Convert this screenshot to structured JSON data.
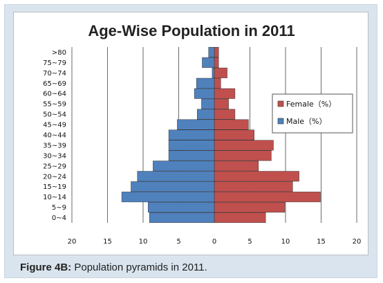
{
  "chart_data": {
    "type": "bar",
    "orientation": "horizontal",
    "title": "Age-Wise Population in 2011",
    "categories": [
      "0~4",
      "5~9",
      "10~14",
      "15~19",
      "20~24",
      "25~29",
      "30~34",
      "35~39",
      "40~44",
      "45~49",
      "50~54",
      "55~59",
      "60~64",
      "65~69",
      "70~74",
      "75~79",
      ">80"
    ],
    "series": [
      {
        "name": "Female (%)",
        "color": "#c0504d",
        "side": "right",
        "values": [
          7.2,
          9.9,
          14.9,
          11.0,
          11.9,
          6.2,
          8.0,
          8.3,
          5.6,
          4.8,
          2.9,
          2.0,
          2.9,
          0.9,
          1.8,
          0.6,
          0.6
        ]
      },
      {
        "name": "Male (%)",
        "color": "#4f81bd",
        "side": "left",
        "values": [
          9.1,
          9.3,
          13.0,
          11.7,
          10.8,
          8.6,
          6.4,
          6.4,
          6.4,
          5.2,
          2.4,
          1.8,
          2.8,
          2.5,
          0.3,
          1.7,
          0.8
        ]
      }
    ],
    "xlim": [
      -20,
      20
    ],
    "xticks": [
      "20",
      "15",
      "10",
      "5",
      "0",
      "5",
      "10",
      "15",
      "20"
    ],
    "grid": "vertical",
    "legend_position": "right"
  },
  "caption": {
    "label": "Figure 4B:",
    "text": " Population pyramids in 2011."
  },
  "legend": {
    "female_label": "Female（%）",
    "male_label": "Male（%）"
  }
}
